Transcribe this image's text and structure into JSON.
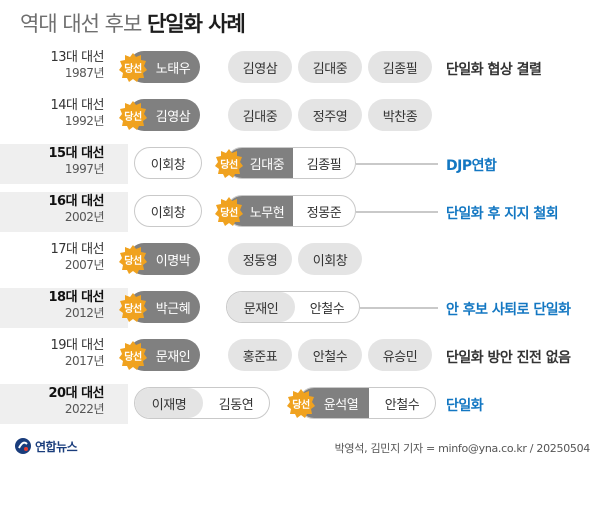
{
  "title": {
    "light": "역대 대선 후보",
    "bold": "단일화 사례"
  },
  "win_badge_label": "당선",
  "rows": [
    {
      "era": "13대 대선",
      "year": "1987년",
      "winner": "노태우",
      "others": [
        "김영삼",
        "김대중",
        "김종필"
      ],
      "result": "단일화 협상 결렬"
    },
    {
      "era": "14대 대선",
      "year": "1992년",
      "winner": "김영삼",
      "others": [
        "김대중",
        "정주영",
        "박찬종"
      ],
      "result": ""
    },
    {
      "era": "15대 대선",
      "year": "1997년",
      "first": "이회창",
      "pair_a": "김대중",
      "pair_b": "김종필",
      "result": "DJP연합"
    },
    {
      "era": "16대 대선",
      "year": "2002년",
      "first": "이회창",
      "pair_a": "노무현",
      "pair_b": "정몽준",
      "result": "단일화 후 지지 철회"
    },
    {
      "era": "17대 대선",
      "year": "2007년",
      "winner": "이명박",
      "others": [
        "정동영",
        "이회창"
      ],
      "result": ""
    },
    {
      "era": "18대 대선",
      "year": "2012년",
      "winner": "박근혜",
      "pair_a": "문재인",
      "pair_b": "안철수",
      "result": "안 후보 사퇴로 단일화"
    },
    {
      "era": "19대 대선",
      "year": "2017년",
      "winner": "문재인",
      "others": [
        "홍준표",
        "안철수",
        "유승민"
      ],
      "result": "단일화 방안 진전 없음"
    },
    {
      "era": "20대 대선",
      "year": "2022년",
      "pair1_a": "이재명",
      "pair1_b": "김동연",
      "pair_a": "윤석열",
      "pair_b": "안철수",
      "result": "단일화"
    }
  ],
  "logo": "연합뉴스",
  "credit": "박영석, 김민지 기자 = minfo@yna.co.kr / 20250504",
  "colors": {
    "result_blue": "#1377c2",
    "badge_gold": "#f0a21f",
    "winner_gray": "#808080"
  }
}
